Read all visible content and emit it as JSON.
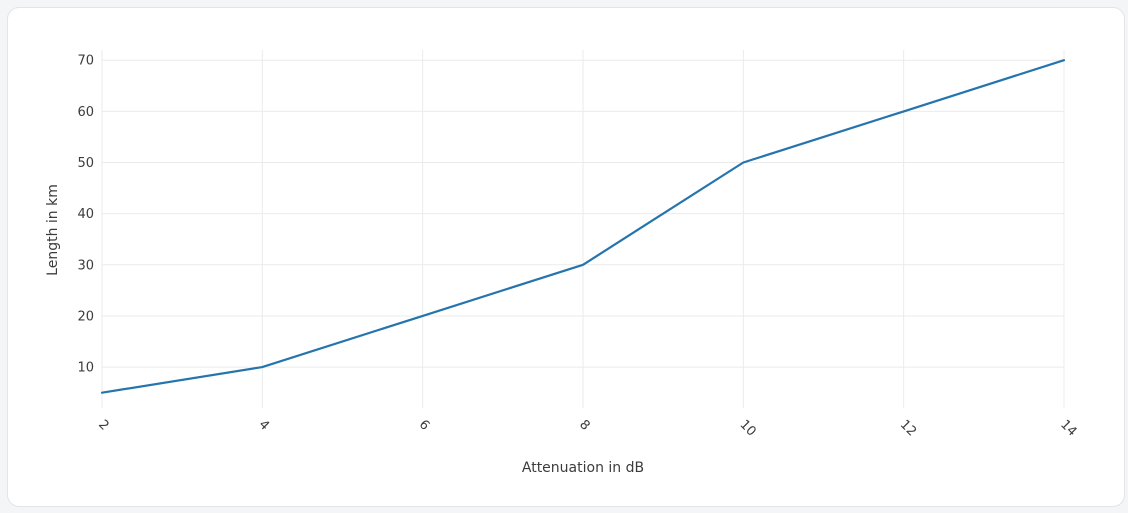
{
  "chart_data": {
    "type": "line",
    "title": "",
    "xlabel": "Attenuation in dB",
    "ylabel": "Length in km",
    "x": [
      2,
      4,
      6,
      8,
      10,
      12,
      14
    ],
    "series": [
      {
        "values": [
          5,
          10,
          20,
          30,
          50,
          60,
          70
        ]
      }
    ],
    "xlim": [
      2,
      14
    ],
    "ylim": [
      2,
      72
    ],
    "xticks": [
      "2",
      "4",
      "6",
      "8",
      "10",
      "12",
      "14"
    ],
    "yticks": [
      "10",
      "20",
      "30",
      "40",
      "50",
      "60",
      "70"
    ],
    "grid": true,
    "legend": "none",
    "line_color": "#2574ad",
    "grid_color": "#ebebeb"
  }
}
